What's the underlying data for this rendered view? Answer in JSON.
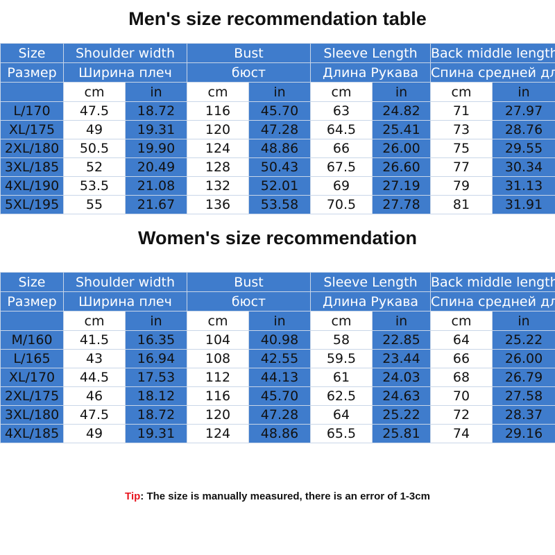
{
  "men": {
    "title": "Men's size recommendation table",
    "header_en": [
      "Size",
      "Shoulder width",
      "Bust",
      "Sleeve Length",
      "Back middle length"
    ],
    "header_ru": [
      "Размер",
      "Ширина плеч",
      "бюст",
      "Длина Рукава",
      "Спина средней длины"
    ],
    "units": [
      "cm",
      "in",
      "cm",
      "in",
      "cm",
      "in",
      "cm",
      "in"
    ],
    "rows": [
      [
        "L/170",
        "47.5",
        "18.72",
        "116",
        "45.70",
        "63",
        "24.82",
        "71",
        "27.97"
      ],
      [
        "XL/175",
        "49",
        "19.31",
        "120",
        "47.28",
        "64.5",
        "25.41",
        "73",
        "28.76"
      ],
      [
        "2XL/180",
        "50.5",
        "19.90",
        "124",
        "48.86",
        "66",
        "26.00",
        "75",
        "29.55"
      ],
      [
        "3XL/185",
        "52",
        "20.49",
        "128",
        "50.43",
        "67.5",
        "26.60",
        "77",
        "30.34"
      ],
      [
        "4XL/190",
        "53.5",
        "21.08",
        "132",
        "52.01",
        "69",
        "27.19",
        "79",
        "31.13"
      ],
      [
        "5XL/195",
        "55",
        "21.67",
        "136",
        "53.58",
        "70.5",
        "27.78",
        "81",
        "31.91"
      ]
    ]
  },
  "women": {
    "title": "Women's size recommendation",
    "header_en": [
      "Size",
      "Shoulder width",
      "Bust",
      "Sleeve Length",
      "Back middle length"
    ],
    "header_ru": [
      "Размер",
      "Ширина плеч",
      "бюст",
      "Длина Рукава",
      "Спина средней длины"
    ],
    "units": [
      "cm",
      "in",
      "cm",
      "in",
      "cm",
      "in",
      "cm",
      "in"
    ],
    "rows": [
      [
        "M/160",
        "41.5",
        "16.35",
        "104",
        "40.98",
        "58",
        "22.85",
        "64",
        "25.22"
      ],
      [
        "L/165",
        "43",
        "16.94",
        "108",
        "42.55",
        "59.5",
        "23.44",
        "66",
        "26.00"
      ],
      [
        "XL/170",
        "44.5",
        "17.53",
        "112",
        "44.13",
        "61",
        "24.03",
        "68",
        "26.79"
      ],
      [
        "2XL/175",
        "46",
        "18.12",
        "116",
        "45.70",
        "62.5",
        "24.63",
        "70",
        "27.58"
      ],
      [
        "3XL/180",
        "47.5",
        "18.72",
        "120",
        "47.28",
        "64",
        "25.22",
        "72",
        "28.37"
      ],
      [
        "4XL/185",
        "49",
        "19.31",
        "124",
        "48.86",
        "65.5",
        "25.81",
        "74",
        "29.16"
      ]
    ]
  },
  "tip": {
    "label": "Tip",
    "text": ": The size is manually measured, there is an error of 1-3cm"
  },
  "colors": {
    "header_blue": "#3f7ccc",
    "tip_red": "#e8141e"
  }
}
